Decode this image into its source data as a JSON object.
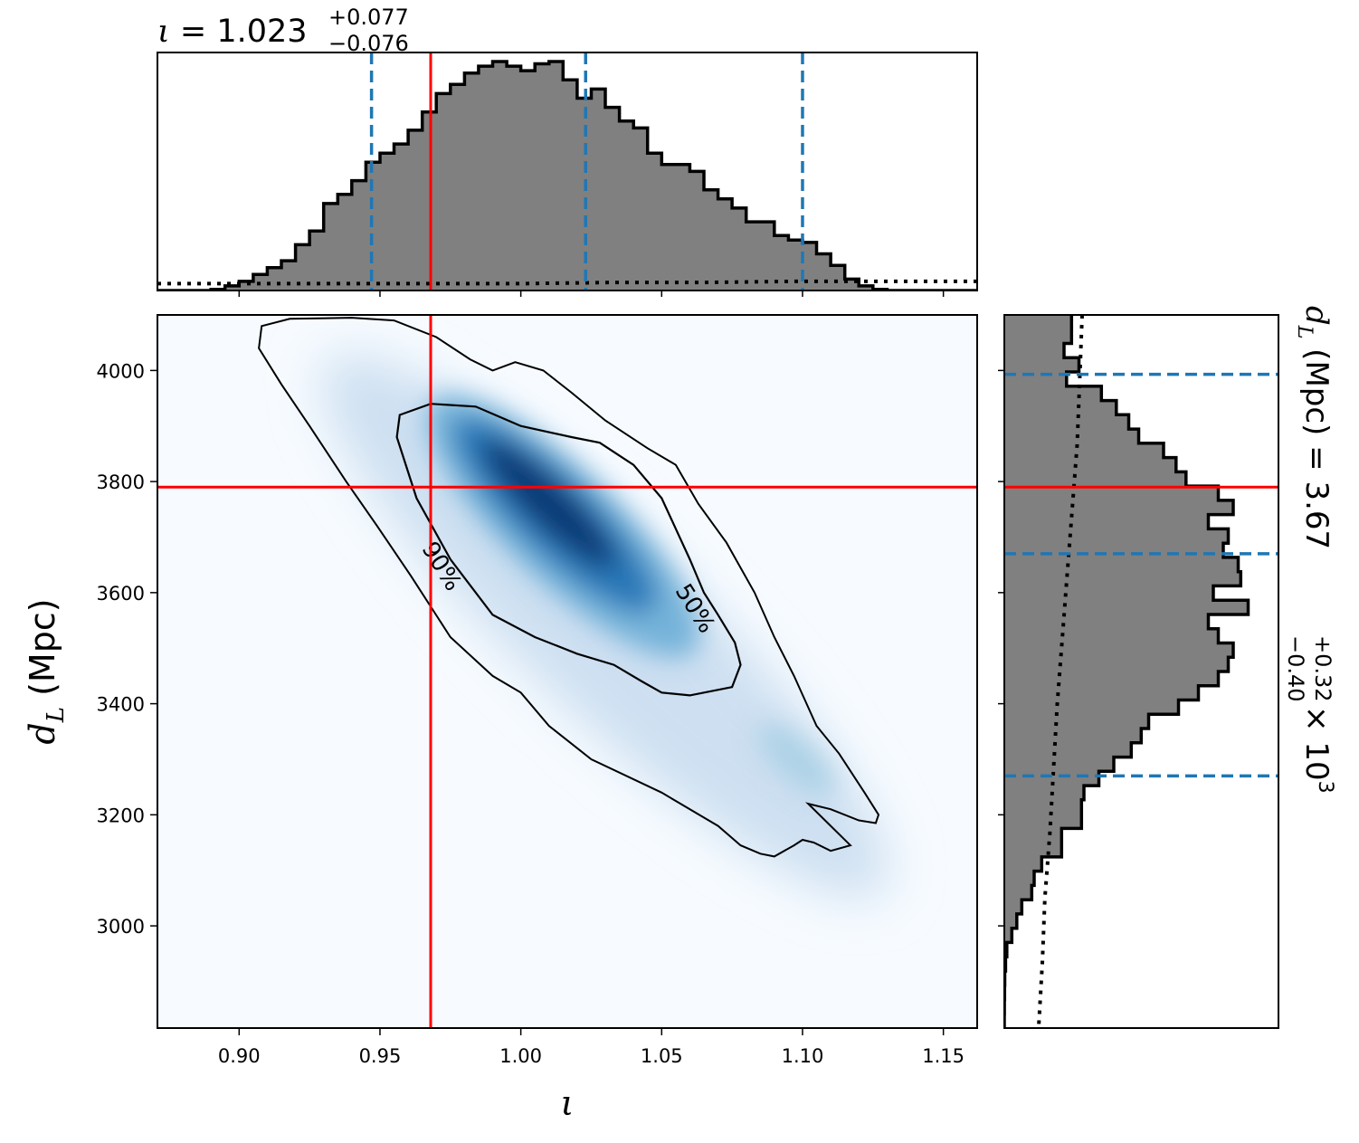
{
  "chart_data": {
    "type": "corner",
    "title_top": {
      "symbol": "ι",
      "eq": " = ",
      "value": "1.023",
      "sup": "+0.077",
      "sub": "−0.076"
    },
    "title_right": {
      "symbol": "d",
      "subscript": "L",
      "unit": " (Mpc) = ",
      "value": "3.67",
      "sup": "+0.32",
      "sub": "−0.40",
      "times": "×",
      "power_base": "10",
      "power_exp": "3"
    },
    "xlabel": "ι",
    "ylabel": {
      "symbol": "d",
      "subscript": "L",
      "unit": " (Mpc)"
    },
    "xlim": [
      0.871,
      1.162
    ],
    "ylim": [
      2816,
      4100
    ],
    "xticks": [
      0.9,
      0.95,
      1.0,
      1.05,
      1.1,
      1.15
    ],
    "xtick_labels": [
      "0.90",
      "0.95",
      "1.00",
      "1.05",
      "1.10",
      "1.15"
    ],
    "yticks": [
      3000,
      3200,
      3400,
      3600,
      3800,
      4000
    ],
    "ytick_labels": [
      "3000",
      "3200",
      "3400",
      "3600",
      "3800",
      "4000"
    ],
    "injected": {
      "iota": 0.968,
      "dL": 3790
    },
    "iota_quantiles": [
      0.947,
      1.023,
      1.1
    ],
    "dL_quantiles": [
      3270,
      3670,
      3993
    ],
    "contour_levels": [
      {
        "label": "50%",
        "points": [
          [
            0.957,
            3920
          ],
          [
            0.968,
            3940
          ],
          [
            0.984,
            3935
          ],
          [
            1.0,
            3900
          ],
          [
            1.018,
            3880
          ],
          [
            1.028,
            3870
          ],
          [
            1.04,
            3830
          ],
          [
            1.05,
            3770
          ],
          [
            1.06,
            3660
          ],
          [
            1.065,
            3600
          ],
          [
            1.07,
            3560
          ],
          [
            1.076,
            3510
          ],
          [
            1.078,
            3470
          ],
          [
            1.075,
            3430
          ],
          [
            1.06,
            3415
          ],
          [
            1.05,
            3420
          ],
          [
            1.043,
            3440
          ],
          [
            1.033,
            3470
          ],
          [
            1.02,
            3490
          ],
          [
            1.005,
            3520
          ],
          [
            0.99,
            3560
          ],
          [
            0.975,
            3660
          ],
          [
            0.963,
            3770
          ],
          [
            0.956,
            3880
          ]
        ]
      },
      {
        "label": "90%",
        "points": [
          [
            0.94,
            4095
          ],
          [
            0.955,
            4090
          ],
          [
            0.97,
            4060
          ],
          [
            0.982,
            4020
          ],
          [
            0.99,
            4000
          ],
          [
            0.998,
            4015
          ],
          [
            1.008,
            4000
          ],
          [
            1.018,
            3960
          ],
          [
            1.03,
            3910
          ],
          [
            1.045,
            3860
          ],
          [
            1.055,
            3830
          ],
          [
            1.063,
            3760
          ],
          [
            1.073,
            3690
          ],
          [
            1.083,
            3600
          ],
          [
            1.09,
            3520
          ],
          [
            1.097,
            3450
          ],
          [
            1.105,
            3360
          ],
          [
            1.113,
            3310
          ],
          [
            1.122,
            3240
          ],
          [
            1.127,
            3200
          ],
          [
            1.126,
            3185
          ],
          [
            1.12,
            3190
          ],
          [
            1.11,
            3210
          ],
          [
            1.102,
            3220
          ],
          [
            1.11,
            3180
          ],
          [
            1.117,
            3145
          ],
          [
            1.11,
            3135
          ],
          [
            1.104,
            3150
          ],
          [
            1.1,
            3155
          ],
          [
            1.097,
            3145
          ],
          [
            1.09,
            3125
          ],
          [
            1.085,
            3130
          ],
          [
            1.078,
            3145
          ],
          [
            1.07,
            3180
          ],
          [
            1.05,
            3240
          ],
          [
            1.025,
            3300
          ],
          [
            1.01,
            3360
          ],
          [
            1.0,
            3420
          ],
          [
            0.99,
            3450
          ],
          [
            0.975,
            3520
          ],
          [
            0.961,
            3630
          ],
          [
            0.949,
            3720
          ],
          [
            0.938,
            3800
          ],
          [
            0.925,
            3900
          ],
          [
            0.915,
            3975
          ],
          [
            0.907,
            4040
          ],
          [
            0.908,
            4080
          ],
          [
            0.918,
            4093
          ]
        ]
      }
    ],
    "density_ridge": {
      "x_start": 0.935,
      "y_start": 4000,
      "x_end": 1.125,
      "y_end": 3080
    },
    "iota_hist_levels": [
      0,
      0.005,
      0.02,
      0.04,
      0.07,
      0.1,
      0.13,
      0.2,
      0.26,
      0.38,
      0.42,
      0.48,
      0.56,
      0.6,
      0.64,
      0.7,
      0.78,
      0.86,
      0.9,
      0.95,
      0.98,
      1.0,
      0.98,
      0.96,
      0.99,
      1.0,
      0.92,
      0.84,
      0.88,
      0.8,
      0.74,
      0.71,
      0.6,
      0.55,
      0.55,
      0.52,
      0.44,
      0.4,
      0.36,
      0.3,
      0.3,
      0.24,
      0.22,
      0.21,
      0.16,
      0.11,
      0.05,
      0.02,
      0.005,
      0
    ],
    "dL_hist_levels": [
      0.27,
      0.27,
      0.24,
      0.3,
      0.25,
      0.39,
      0.45,
      0.5,
      0.54,
      0.64,
      0.69,
      0.73,
      0.86,
      0.92,
      0.82,
      0.9,
      0.88,
      0.94,
      0.95,
      0.84,
      0.98,
      0.82,
      0.86,
      0.92,
      0.9,
      0.86,
      0.78,
      0.7,
      0.58,
      0.55,
      0.51,
      0.44,
      0.38,
      0.32,
      0.31,
      0.31,
      0.23,
      0.23,
      0.15,
      0.12,
      0.11,
      0.07,
      0.05,
      0.03,
      0.01,
      0.005,
      0.002,
      0.001,
      0.0005,
      0
    ],
    "iota_prior_levels": [
      0.03,
      0.03,
      0.03,
      0.03,
      0.03,
      0.035,
      0.035,
      0.04,
      0.04,
      0.04
    ],
    "dL_prior_levels": [
      0.48,
      0.46,
      0.44,
      0.4,
      0.36,
      0.32,
      0.28,
      0.25,
      0.22,
      0.18,
      0.16,
      0.13
    ]
  },
  "colors": {
    "injected": "#ff0000",
    "quantile": "#1f77b4",
    "hist_fill": "#808080",
    "hist_edge": "#000000",
    "contour": "#000000",
    "density_low": "#f7fbff",
    "density_high": "#08306b"
  }
}
